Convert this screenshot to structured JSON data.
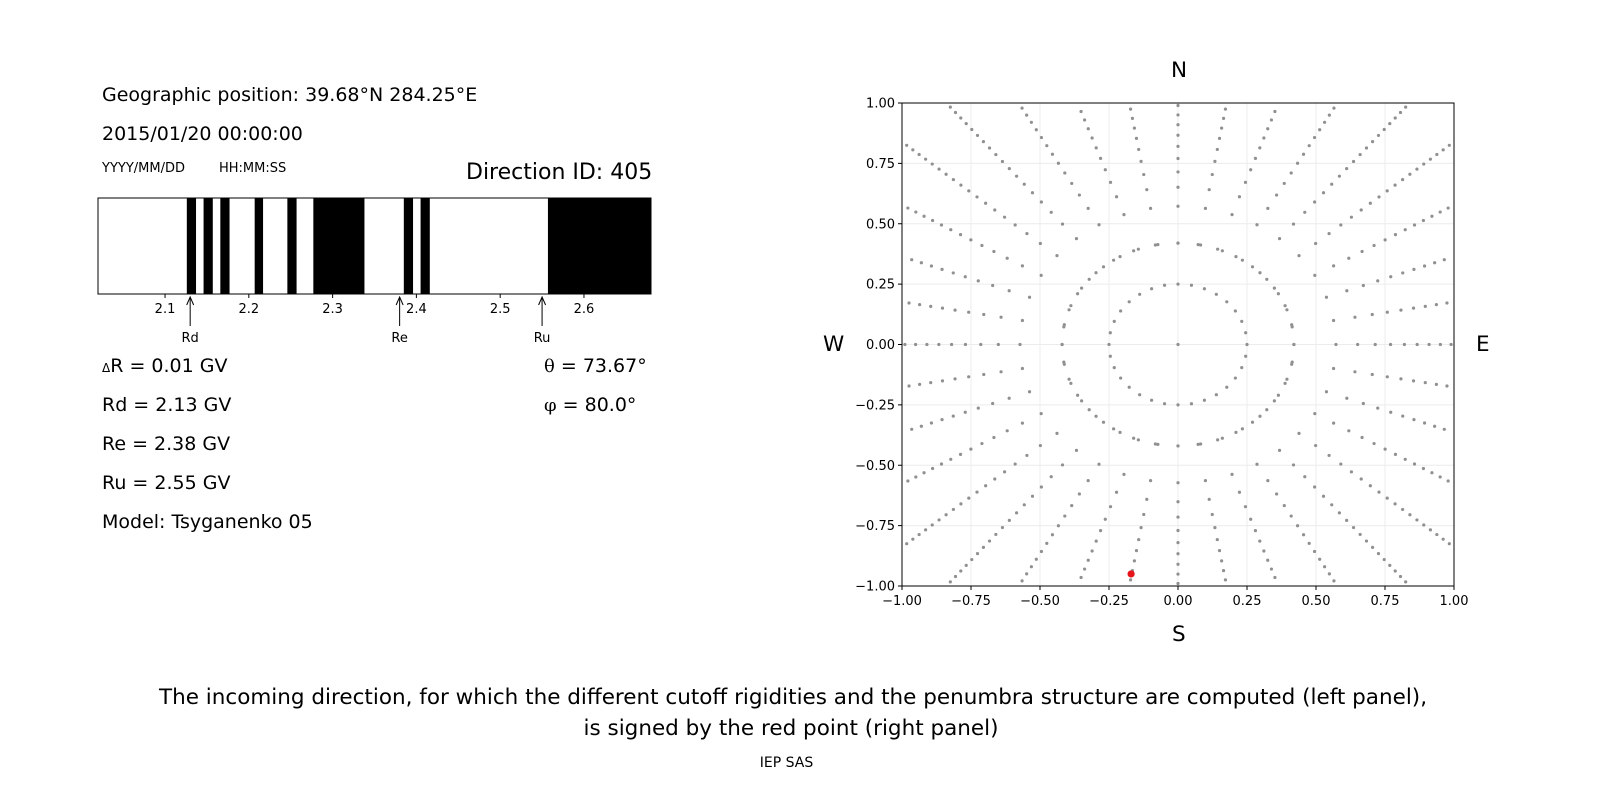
{
  "header": {
    "position": "Geographic position: 39.68°N 284.25°E",
    "datetime": "2015/01/20 00:00:00",
    "date_format": "YYYY/MM/DD",
    "time_format": "HH:MM:SS",
    "direction_id": "Direction ID: 405"
  },
  "stats": {
    "delta_r_symbol": "Δ",
    "delta_r": "R = 0.01 GV",
    "rd": "Rd = 2.13 GV",
    "re": "Re = 2.38 GV",
    "ru": "Ru = 2.55 GV",
    "model": "Model: Tsyganenko 05",
    "theta_symbol": "θ",
    "theta": " = 73.67°",
    "phi_symbol": "φ",
    "phi": " = 80.0°"
  },
  "compass": {
    "north": "N",
    "south": "S",
    "west": "W",
    "east": "E"
  },
  "caption": {
    "line1": "The incoming direction, for which the different cutoff rigidities and the penumbra structure are computed (left panel),",
    "line2": "is signed by the red point (right panel)",
    "footer": "IEP SAS"
  },
  "chart_data": [
    {
      "type": "bar",
      "x_range": [
        2.02,
        2.68
      ],
      "x_ticks": [
        2.1,
        2.2,
        2.3,
        2.4,
        2.5,
        2.6
      ],
      "x_tick_labels": [
        "2.1",
        "2.2",
        "2.3",
        "2.4",
        "2.5",
        "2.6"
      ],
      "forbidden_bands": [
        [
          2.126,
          2.137
        ],
        [
          2.146,
          2.157
        ],
        [
          2.166,
          2.177
        ],
        [
          2.207,
          2.217
        ],
        [
          2.246,
          2.257
        ],
        [
          2.277,
          2.338
        ],
        [
          2.385,
          2.396
        ],
        [
          2.405,
          2.416
        ],
        [
          2.557,
          2.683
        ]
      ],
      "markers": [
        {
          "label": "Rd",
          "value": 2.13
        },
        {
          "label": "Re",
          "value": 2.38
        },
        {
          "label": "Ru",
          "value": 2.55
        }
      ],
      "color_forbidden": "#000000",
      "color_allowed": "#ffffff"
    },
    {
      "type": "scatter",
      "xlim": [
        -1.0,
        1.0
      ],
      "ylim": [
        -1.0,
        1.0
      ],
      "x_ticks": [
        -1.0,
        -0.75,
        -0.5,
        -0.25,
        0.0,
        0.25,
        0.5,
        0.75,
        1.0
      ],
      "x_tick_labels": [
        "−1.00",
        "−0.75",
        "−0.50",
        "−0.25",
        "0.00",
        "0.25",
        "0.50",
        "0.75",
        "1.00"
      ],
      "y_ticks": [
        -1.0,
        -0.75,
        -0.5,
        -0.25,
        0.0,
        0.25,
        0.5,
        0.75,
        1.0
      ],
      "y_tick_labels": [
        "−1.00",
        "−0.75",
        "−0.50",
        "−0.25",
        "0.00",
        "0.25",
        "0.50",
        "0.75",
        "1.00"
      ],
      "grid": true,
      "rings": [
        0.25,
        0.42
      ],
      "ring_points": 32,
      "spokes": 36,
      "spoke_start": 0.42,
      "spoke_end": 1.0,
      "spoke_count": 24,
      "highlight": {
        "x": -0.17,
        "y": -0.95
      },
      "point_color": "#909090",
      "highlight_color": "#e8141b"
    }
  ]
}
